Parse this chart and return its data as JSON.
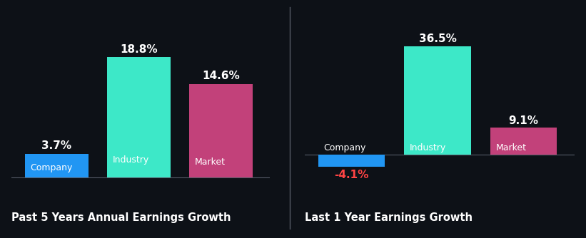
{
  "background_color": "#0d1117",
  "bar_color_company": "#2196f3",
  "bar_color_industry": "#3de8c8",
  "bar_color_market": "#c2417a",
  "divider_color": "#555a66",
  "text_color_white": "#ffffff",
  "text_color_red": "#ff4444",
  "chart1": {
    "title": "Past 5 Years Annual Earnings Growth",
    "categories": [
      "Company",
      "Industry",
      "Market"
    ],
    "values": [
      3.7,
      18.8,
      14.6
    ],
    "labels": [
      "3.7%",
      "18.8%",
      "14.6%"
    ]
  },
  "chart2": {
    "title": "Last 1 Year Earnings Growth",
    "categories": [
      "Company",
      "Industry",
      "Market"
    ],
    "values": [
      -4.1,
      36.5,
      9.1
    ],
    "labels": [
      "-4.1%",
      "36.5%",
      "9.1%"
    ]
  },
  "title_fontsize": 10.5,
  "label_fontsize": 11,
  "sublabel_fontsize": 9
}
